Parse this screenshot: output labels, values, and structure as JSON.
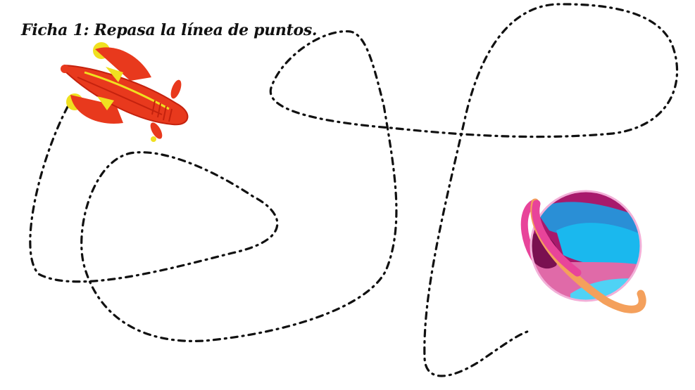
{
  "worksheet": {
    "title": "Ficha 1: Repasa la línea de puntos.",
    "line_color": "#111111",
    "pictures": {
      "rocket": {
        "icon": "rocket-icon",
        "colors": [
          "#e8391d",
          "#f0e020",
          "#c4220e"
        ]
      },
      "planet": {
        "icon": "planet-icon",
        "colors": [
          "#a8196c",
          "#2a8fd6",
          "#1ab8ee",
          "#e06aa8",
          "#f4a05c",
          "#e8449a"
        ]
      }
    }
  }
}
